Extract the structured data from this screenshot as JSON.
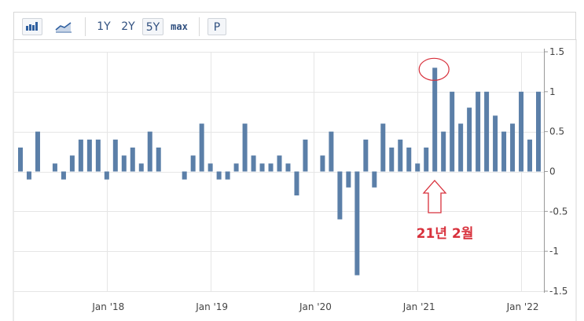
{
  "toolbar": {
    "icons": [
      "bar-chart-icon",
      "line-chart-icon"
    ],
    "range_buttons": [
      "1Y",
      "2Y",
      "5Y",
      "max"
    ],
    "selected_range": "5Y",
    "p_button": "P"
  },
  "colors": {
    "bar": "#5b7fa8",
    "grid": "#e6e6e6",
    "annotation": "#d8313c"
  },
  "chart_data": {
    "type": "bar",
    "ylim": [
      -1.5,
      1.5
    ],
    "yticks": [
      1.5,
      1,
      0.5,
      0,
      -0.5,
      -1,
      -1.5
    ],
    "ytick_labels": [
      "1.5",
      "1",
      "0.5",
      "0",
      "-0.5",
      "-1",
      "-1.5"
    ],
    "xtick_labels": [
      "Jan '18",
      "Jan '19",
      "Jan '20",
      "Jan '21",
      "Jan '22"
    ],
    "xtick_bar_index": [
      10,
      22,
      34,
      46,
      58
    ],
    "grid": true,
    "values": [
      0.3,
      -0.1,
      0.5,
      0,
      0.1,
      -0.1,
      0.2,
      0.4,
      0.4,
      0.4,
      -0.1,
      0.4,
      0.2,
      0.3,
      0.1,
      0.5,
      0.3,
      0,
      0,
      -0.1,
      0.2,
      0.6,
      0.1,
      -0.1,
      -0.1,
      0.1,
      0.6,
      0.2,
      0.1,
      0.1,
      0.2,
      0.1,
      -0.3,
      0.4,
      0,
      0.2,
      0.5,
      -0.6,
      -0.2,
      -1.3,
      0.4,
      -0.2,
      0.6,
      0.3,
      0.4,
      0.3,
      0.1,
      0.3,
      1.3,
      0.5,
      1.0,
      0.6,
      0.8,
      1.0,
      1.0,
      0.7,
      0.5,
      0.6,
      1.0,
      0.4,
      1.0
    ],
    "highlight_index": 48,
    "annotation": "21년 2월"
  }
}
